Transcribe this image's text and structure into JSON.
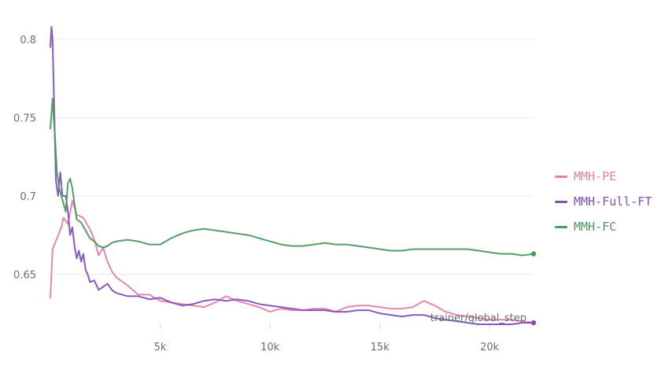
{
  "chart_data": {
    "type": "line",
    "xlabel": "trainer/global_step",
    "ylabel": "",
    "xlim": [
      0,
      22000
    ],
    "ylim": [
      0.615,
      0.81
    ],
    "x_ticks": [
      5000,
      10000,
      15000,
      20000
    ],
    "x_tick_labels": [
      "5k",
      "10k",
      "15k",
      "20k"
    ],
    "y_ticks": [
      0.65,
      0.7,
      0.75,
      0.8
    ],
    "y_tick_labels": [
      "0.65",
      "0.7",
      "0.75",
      "0.8"
    ],
    "grid": "horizontal",
    "legend_position": "right",
    "series": [
      {
        "name": "MMH-PE",
        "color": "#e67fa8",
        "x": [
          0,
          100,
          300,
          500,
          600,
          800,
          1000,
          1200,
          1500,
          1800,
          2000,
          2200,
          2400,
          2600,
          2800,
          3000,
          3500,
          4000,
          4500,
          5000,
          5500,
          6000,
          6500,
          7000,
          7500,
          8000,
          8500,
          9000,
          9500,
          10000,
          10500,
          11000,
          11500,
          12000,
          12500,
          13000,
          13500,
          14000,
          14500,
          15000,
          15500,
          16000,
          16500,
          17000,
          17500,
          18000,
          18500,
          19000,
          19500,
          20000,
          20500,
          21000,
          21500,
          22000
        ],
        "y": [
          0.635,
          0.666,
          0.673,
          0.68,
          0.686,
          0.682,
          0.697,
          0.688,
          0.686,
          0.679,
          0.672,
          0.662,
          0.667,
          0.658,
          0.652,
          0.648,
          0.643,
          0.637,
          0.637,
          0.633,
          0.632,
          0.631,
          0.63,
          0.629,
          0.632,
          0.636,
          0.633,
          0.631,
          0.629,
          0.626,
          0.628,
          0.627,
          0.627,
          0.628,
          0.628,
          0.626,
          0.629,
          0.63,
          0.63,
          0.629,
          0.628,
          0.628,
          0.629,
          0.633,
          0.63,
          0.626,
          0.624,
          0.623,
          0.622,
          0.621,
          0.621,
          0.621,
          0.62,
          0.619
        ]
      },
      {
        "name": "MMH-Full-FT",
        "color": "#7e52b8",
        "x": [
          0,
          50,
          100,
          150,
          250,
          350,
          450,
          550,
          700,
          800,
          900,
          1000,
          1100,
          1200,
          1300,
          1400,
          1500,
          1600,
          1700,
          1800,
          2000,
          2200,
          2400,
          2600,
          2800,
          3000,
          3500,
          4000,
          4500,
          5000,
          5500,
          6000,
          6500,
          7000,
          7500,
          8000,
          8500,
          9000,
          9500,
          10000,
          10500,
          11000,
          11500,
          12000,
          12500,
          13000,
          13500,
          14000,
          14500,
          15000,
          15500,
          16000,
          16500,
          17000,
          17500,
          18000,
          18500,
          19000,
          19500,
          20000,
          20500,
          21000,
          21500,
          22000
        ],
        "y": [
          0.795,
          0.808,
          0.8,
          0.77,
          0.71,
          0.7,
          0.715,
          0.7,
          0.7,
          0.69,
          0.675,
          0.68,
          0.668,
          0.66,
          0.665,
          0.658,
          0.663,
          0.653,
          0.65,
          0.645,
          0.646,
          0.64,
          0.642,
          0.644,
          0.64,
          0.638,
          0.636,
          0.636,
          0.634,
          0.635,
          0.632,
          0.63,
          0.631,
          0.633,
          0.634,
          0.633,
          0.634,
          0.633,
          0.631,
          0.63,
          0.629,
          0.628,
          0.627,
          0.627,
          0.627,
          0.626,
          0.626,
          0.627,
          0.627,
          0.625,
          0.624,
          0.623,
          0.624,
          0.624,
          0.622,
          0.621,
          0.62,
          0.619,
          0.618,
          0.618,
          0.618,
          0.618,
          0.619,
          0.619
        ]
      },
      {
        "name": "MMH-FC",
        "color": "#4a9a5f",
        "x": [
          0,
          100,
          200,
          300,
          400,
          500,
          600,
          700,
          800,
          900,
          1000,
          1100,
          1200,
          1400,
          1600,
          1800,
          2000,
          2200,
          2400,
          2600,
          2800,
          3000,
          3500,
          4000,
          4500,
          5000,
          5500,
          6000,
          6500,
          7000,
          7500,
          8000,
          8500,
          9000,
          9500,
          10000,
          10500,
          11000,
          11500,
          12000,
          12500,
          13000,
          13500,
          14000,
          14500,
          15000,
          15500,
          16000,
          16500,
          17000,
          17500,
          18000,
          18500,
          19000,
          19500,
          20000,
          20500,
          21000,
          21500,
          22000
        ],
        "y": [
          0.743,
          0.762,
          0.74,
          0.715,
          0.705,
          0.7,
          0.695,
          0.69,
          0.708,
          0.711,
          0.705,
          0.695,
          0.685,
          0.683,
          0.678,
          0.673,
          0.671,
          0.668,
          0.667,
          0.668,
          0.67,
          0.671,
          0.672,
          0.671,
          0.669,
          0.669,
          0.673,
          0.676,
          0.678,
          0.679,
          0.678,
          0.677,
          0.676,
          0.675,
          0.673,
          0.671,
          0.669,
          0.668,
          0.668,
          0.669,
          0.67,
          0.669,
          0.669,
          0.668,
          0.667,
          0.666,
          0.665,
          0.665,
          0.666,
          0.666,
          0.666,
          0.666,
          0.666,
          0.666,
          0.665,
          0.664,
          0.663,
          0.663,
          0.662,
          0.663
        ]
      }
    ]
  }
}
